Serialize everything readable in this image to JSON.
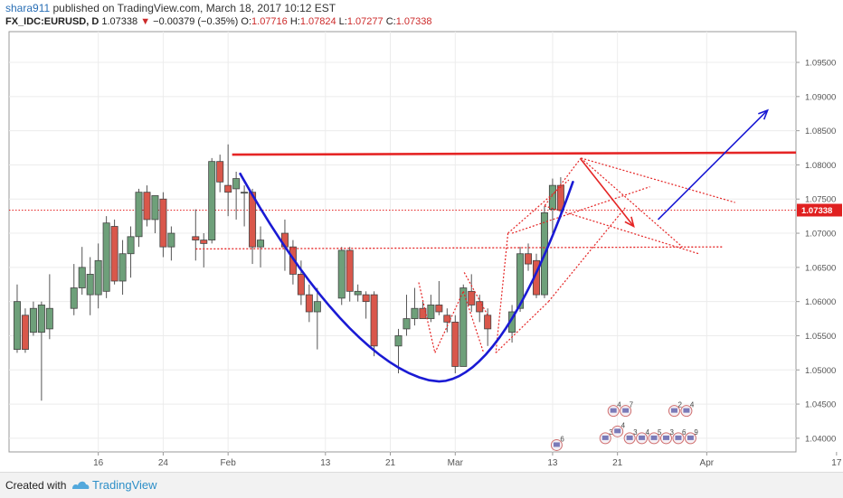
{
  "header": {
    "user": "shara911",
    "published": " published on TradingView.com, March 18, 2017 10:12 EST",
    "symbol": "FX_IDC:EURUSD, D",
    "last": "1.07338",
    "arrow": "▼",
    "change": "−0.00379 (−0.35%)",
    "o_label": "O:",
    "o": "1.07716",
    "h_label": "H:",
    "h": "1.07824",
    "l_label": "L:",
    "l": "1.07277",
    "c_label": "C:",
    "c": "1.07338"
  },
  "footer": {
    "created": "Created with",
    "brand": "TradingView"
  },
  "colors": {
    "up": "#6ea07a",
    "down": "#d9574b",
    "trend": "#e52525",
    "curve": "#1a1ad4",
    "arrow_up": "#1a1ad4",
    "arrow_down": "#e52525"
  },
  "chart_data": {
    "type": "candlestick",
    "ylim": [
      1.038,
      1.0995
    ],
    "x_day_range": [
      0,
      97
    ],
    "yticks": [
      "1.04000",
      "1.04500",
      "1.05000",
      "1.05500",
      "1.06000",
      "1.06500",
      "1.07000",
      "1.07500",
      "1.08000",
      "1.08500",
      "1.09000",
      "1.09500"
    ],
    "xticks": [
      {
        "day": 11,
        "label": "16"
      },
      {
        "day": 19,
        "label": "24"
      },
      {
        "day": 27,
        "label": "Feb"
      },
      {
        "day": 39,
        "label": "13"
      },
      {
        "day": 47,
        "label": "21"
      },
      {
        "day": 55,
        "label": "Mar"
      },
      {
        "day": 67,
        "label": "13"
      },
      {
        "day": 75,
        "label": "21"
      },
      {
        "day": 86,
        "label": "Apr"
      },
      {
        "day": 102,
        "label": "17"
      }
    ],
    "last_price": "1.07338",
    "candles": [
      {
        "d": 1,
        "o": 1.053,
        "h": 1.0625,
        "l": 1.0525,
        "c": 1.06
      },
      {
        "d": 2,
        "o": 1.058,
        "h": 1.059,
        "l": 1.0525,
        "c": 1.053
      },
      {
        "d": 3,
        "o": 1.0555,
        "h": 1.06,
        "l": 1.055,
        "c": 1.059
      },
      {
        "d": 4,
        "o": 1.0555,
        "h": 1.06,
        "l": 1.0455,
        "c": 1.0595
      },
      {
        "d": 5,
        "o": 1.056,
        "h": 1.064,
        "l": 1.0545,
        "c": 1.059
      },
      {
        "d": 8,
        "o": 1.059,
        "h": 1.0655,
        "l": 1.058,
        "c": 1.062
      },
      {
        "d": 9,
        "o": 1.062,
        "h": 1.068,
        "l": 1.061,
        "c": 1.065
      },
      {
        "d": 10,
        "o": 1.061,
        "h": 1.0665,
        "l": 1.058,
        "c": 1.064
      },
      {
        "d": 11,
        "o": 1.061,
        "h": 1.0685,
        "l": 1.059,
        "c": 1.066
      },
      {
        "d": 12,
        "o": 1.0615,
        "h": 1.0725,
        "l": 1.0605,
        "c": 1.0715
      },
      {
        "d": 13,
        "o": 1.071,
        "h": 1.072,
        "l": 1.0625,
        "c": 1.063
      },
      {
        "d": 14,
        "o": 1.063,
        "h": 1.069,
        "l": 1.061,
        "c": 1.067
      },
      {
        "d": 15,
        "o": 1.067,
        "h": 1.071,
        "l": 1.0635,
        "c": 1.0695
      },
      {
        "d": 16,
        "o": 1.0695,
        "h": 1.0765,
        "l": 1.068,
        "c": 1.076
      },
      {
        "d": 17,
        "o": 1.076,
        "h": 1.077,
        "l": 1.071,
        "c": 1.072
      },
      {
        "d": 18,
        "o": 1.072,
        "h": 1.0755,
        "l": 1.07,
        "c": 1.0755
      },
      {
        "d": 19,
        "o": 1.075,
        "h": 1.076,
        "l": 1.0665,
        "c": 1.068
      },
      {
        "d": 20,
        "o": 1.068,
        "h": 1.071,
        "l": 1.066,
        "c": 1.07
      },
      {
        "d": 23,
        "o": 1.0695,
        "h": 1.0735,
        "l": 1.066,
        "c": 1.069
      },
      {
        "d": 24,
        "o": 1.069,
        "h": 1.07,
        "l": 1.065,
        "c": 1.0685
      },
      {
        "d": 25,
        "o": 1.069,
        "h": 1.081,
        "l": 1.0685,
        "c": 1.0805
      },
      {
        "d": 26,
        "o": 1.0805,
        "h": 1.0815,
        "l": 1.076,
        "c": 1.0775
      },
      {
        "d": 27,
        "o": 1.077,
        "h": 1.083,
        "l": 1.0725,
        "c": 1.076
      },
      {
        "d": 28,
        "o": 1.0765,
        "h": 1.079,
        "l": 1.072,
        "c": 1.078
      },
      {
        "d": 29,
        "o": 1.076,
        "h": 1.077,
        "l": 1.071,
        "c": 1.076
      },
      {
        "d": 30,
        "o": 1.076,
        "h": 1.0765,
        "l": 1.0655,
        "c": 1.068
      },
      {
        "d": 31,
        "o": 1.068,
        "h": 1.071,
        "l": 1.065,
        "c": 1.069
      },
      {
        "d": 34,
        "o": 1.07,
        "h": 1.072,
        "l": 1.0645,
        "c": 1.068
      },
      {
        "d": 35,
        "o": 1.068,
        "h": 1.069,
        "l": 1.0625,
        "c": 1.064
      },
      {
        "d": 36,
        "o": 1.064,
        "h": 1.066,
        "l": 1.0595,
        "c": 1.061
      },
      {
        "d": 37,
        "o": 1.061,
        "h": 1.0625,
        "l": 1.057,
        "c": 1.0585
      },
      {
        "d": 38,
        "o": 1.0585,
        "h": 1.062,
        "l": 1.053,
        "c": 1.06
      },
      {
        "d": 41,
        "o": 1.0605,
        "h": 1.068,
        "l": 1.0595,
        "c": 1.0675
      },
      {
        "d": 42,
        "o": 1.0675,
        "h": 1.068,
        "l": 1.06,
        "c": 1.0615
      },
      {
        "d": 43,
        "o": 1.061,
        "h": 1.0625,
        "l": 1.06,
        "c": 1.0615
      },
      {
        "d": 44,
        "o": 1.061,
        "h": 1.0615,
        "l": 1.0575,
        "c": 1.06
      },
      {
        "d": 45,
        "o": 1.061,
        "h": 1.0615,
        "l": 1.052,
        "c": 1.0535
      },
      {
        "d": 48,
        "o": 1.0535,
        "h": 1.056,
        "l": 1.0495,
        "c": 1.055
      },
      {
        "d": 49,
        "o": 1.056,
        "h": 1.061,
        "l": 1.055,
        "c": 1.0575
      },
      {
        "d": 50,
        "o": 1.0575,
        "h": 1.062,
        "l": 1.0565,
        "c": 1.059
      },
      {
        "d": 51,
        "o": 1.059,
        "h": 1.06,
        "l": 1.0575,
        "c": 1.0575
      },
      {
        "d": 52,
        "o": 1.0575,
        "h": 1.061,
        "l": 1.057,
        "c": 1.0595
      },
      {
        "d": 53,
        "o": 1.0595,
        "h": 1.063,
        "l": 1.058,
        "c": 1.0585
      },
      {
        "d": 54,
        "o": 1.058,
        "h": 1.059,
        "l": 1.0555,
        "c": 1.057
      },
      {
        "d": 55,
        "o": 1.057,
        "h": 1.058,
        "l": 1.0495,
        "c": 1.0505
      },
      {
        "d": 56,
        "o": 1.0505,
        "h": 1.0625,
        "l": 1.0505,
        "c": 1.062
      },
      {
        "d": 57,
        "o": 1.0615,
        "h": 1.064,
        "l": 1.0585,
        "c": 1.0595
      },
      {
        "d": 58,
        "o": 1.06,
        "h": 1.061,
        "l": 1.057,
        "c": 1.0585
      },
      {
        "d": 59,
        "o": 1.058,
        "h": 1.059,
        "l": 1.0535,
        "c": 1.056
      },
      {
        "d": 62,
        "o": 1.0555,
        "h": 1.0595,
        "l": 1.054,
        "c": 1.0585
      },
      {
        "d": 63,
        "o": 1.059,
        "h": 1.068,
        "l": 1.0585,
        "c": 1.067
      },
      {
        "d": 64,
        "o": 1.067,
        "h": 1.0685,
        "l": 1.0645,
        "c": 1.0655
      },
      {
        "d": 65,
        "o": 1.066,
        "h": 1.067,
        "l": 1.0605,
        "c": 1.061
      },
      {
        "d": 66,
        "o": 1.061,
        "h": 1.074,
        "l": 1.0605,
        "c": 1.073
      },
      {
        "d": 67,
        "o": 1.0735,
        "h": 1.078,
        "l": 1.07,
        "c": 1.077
      },
      {
        "d": 68,
        "o": 1.077,
        "h": 1.0782,
        "l": 1.0728,
        "c": 1.0734
      }
    ],
    "trend_line": {
      "from": {
        "d": 27.5,
        "y": 1.0815
      },
      "to": {
        "d": 97,
        "y": 1.0818
      }
    },
    "last_price_line": 1.07338,
    "support_dotted": {
      "from": {
        "d": 23,
        "y": 1.0677
      },
      "to": {
        "d": 88,
        "y": 1.068
      }
    },
    "curve": {
      "start": {
        "d": 28.5,
        "y": 1.0787
      },
      "bottom": {
        "d": 53,
        "y": 1.0483
      },
      "end": {
        "d": 69.5,
        "y": 1.0775
      }
    },
    "arrow_down": {
      "from": {
        "d": 70.5,
        "y": 1.0808
      },
      "to": {
        "d": 77,
        "y": 1.071
      }
    },
    "arrow_up": {
      "from": {
        "d": 80,
        "y": 1.072
      },
      "to": {
        "d": 93.5,
        "y": 1.088
      }
    },
    "dotted_lines": [
      {
        "from": {
          "d": 70.5,
          "y": 1.081
        },
        "to": {
          "d": 89.5,
          "y": 1.0745
        }
      },
      {
        "from": {
          "d": 70.5,
          "y": 1.081
        },
        "to": {
          "d": 66,
          "y": 1.074
        }
      },
      {
        "from": {
          "d": 66,
          "y": 1.074
        },
        "to": {
          "d": 85,
          "y": 1.067
        }
      },
      {
        "from": {
          "d": 70.5,
          "y": 1.081
        },
        "to": {
          "d": 83,
          "y": 1.068
        }
      },
      {
        "from": {
          "d": 62,
          "y": 1.07
        },
        "to": {
          "d": 79,
          "y": 1.0768
        }
      },
      {
        "from": {
          "d": 61.5,
          "y": 1.07
        },
        "to": {
          "d": 69,
          "y": 1.0778
        }
      },
      {
        "from": {
          "d": 61.5,
          "y": 1.07
        },
        "to": {
          "d": 60,
          "y": 1.0525
        }
      },
      {
        "from": {
          "d": 60,
          "y": 1.0525
        },
        "to": {
          "d": 66.5,
          "y": 1.06
        }
      },
      {
        "from": {
          "d": 66.5,
          "y": 1.06
        },
        "to": {
          "d": 76,
          "y": 1.0738
        }
      },
      {
        "from": {
          "d": 50.5,
          "y": 1.0628
        },
        "to": {
          "d": 52.5,
          "y": 1.0525
        }
      },
      {
        "from": {
          "d": 52.5,
          "y": 1.0525
        },
        "to": {
          "d": 56,
          "y": 1.0615
        }
      },
      {
        "from": {
          "d": 56,
          "y": 1.0615
        },
        "to": {
          "d": 58.5,
          "y": 1.0525
        }
      },
      {
        "from": {
          "d": 59,
          "y": 1.058
        },
        "to": {
          "d": 56,
          "y": 1.0645
        }
      }
    ],
    "event_markers": [
      {
        "d": 67.5,
        "y": 1.039,
        "label": "6"
      },
      {
        "d": 73.5,
        "y": 1.04,
        "label": "3"
      },
      {
        "d": 75,
        "y": 1.041,
        "label": "4"
      },
      {
        "d": 76.5,
        "y": 1.04,
        "label": "3"
      },
      {
        "d": 78,
        "y": 1.04,
        "label": "4"
      },
      {
        "d": 79.5,
        "y": 1.04,
        "label": "5"
      },
      {
        "d": 81,
        "y": 1.04,
        "label": "3"
      },
      {
        "d": 82.5,
        "y": 1.04,
        "label": "6"
      },
      {
        "d": 84,
        "y": 1.04,
        "label": "9"
      },
      {
        "d": 74.5,
        "y": 1.044,
        "label": "4"
      },
      {
        "d": 76,
        "y": 1.044,
        "label": "7"
      },
      {
        "d": 82,
        "y": 1.044,
        "label": "2"
      },
      {
        "d": 83.5,
        "y": 1.044,
        "label": "4"
      }
    ]
  }
}
